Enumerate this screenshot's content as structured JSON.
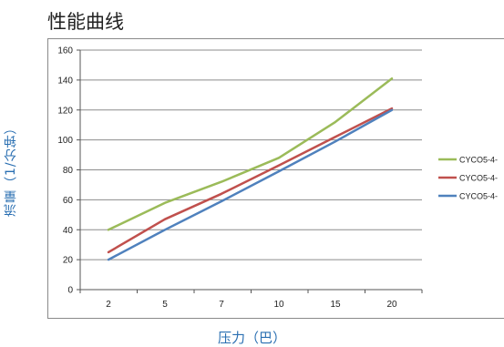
{
  "chart_data": {
    "type": "line",
    "title": "性能曲线",
    "xlabel": "压力（巴）",
    "ylabel": "流量（1/分钟）",
    "categories": [
      "2",
      "5",
      "7",
      "10",
      "15",
      "20"
    ],
    "ylim": [
      0,
      160
    ],
    "yticks": [
      0,
      20,
      40,
      60,
      80,
      100,
      120,
      140,
      160
    ],
    "grid": "horizontal",
    "legend_position": "right",
    "series": [
      {
        "name": "CYCO5-4-",
        "color": "#9bbb59",
        "values": [
          40,
          58,
          72,
          88,
          112,
          141
        ]
      },
      {
        "name": "CYCO5-4-",
        "color": "#c0504d",
        "values": [
          25,
          47,
          64,
          83,
          102,
          121
        ]
      },
      {
        "name": "CYCO5-4-",
        "color": "#4f81bd",
        "values": [
          20,
          40,
          59,
          79,
          99,
          120
        ]
      }
    ]
  }
}
